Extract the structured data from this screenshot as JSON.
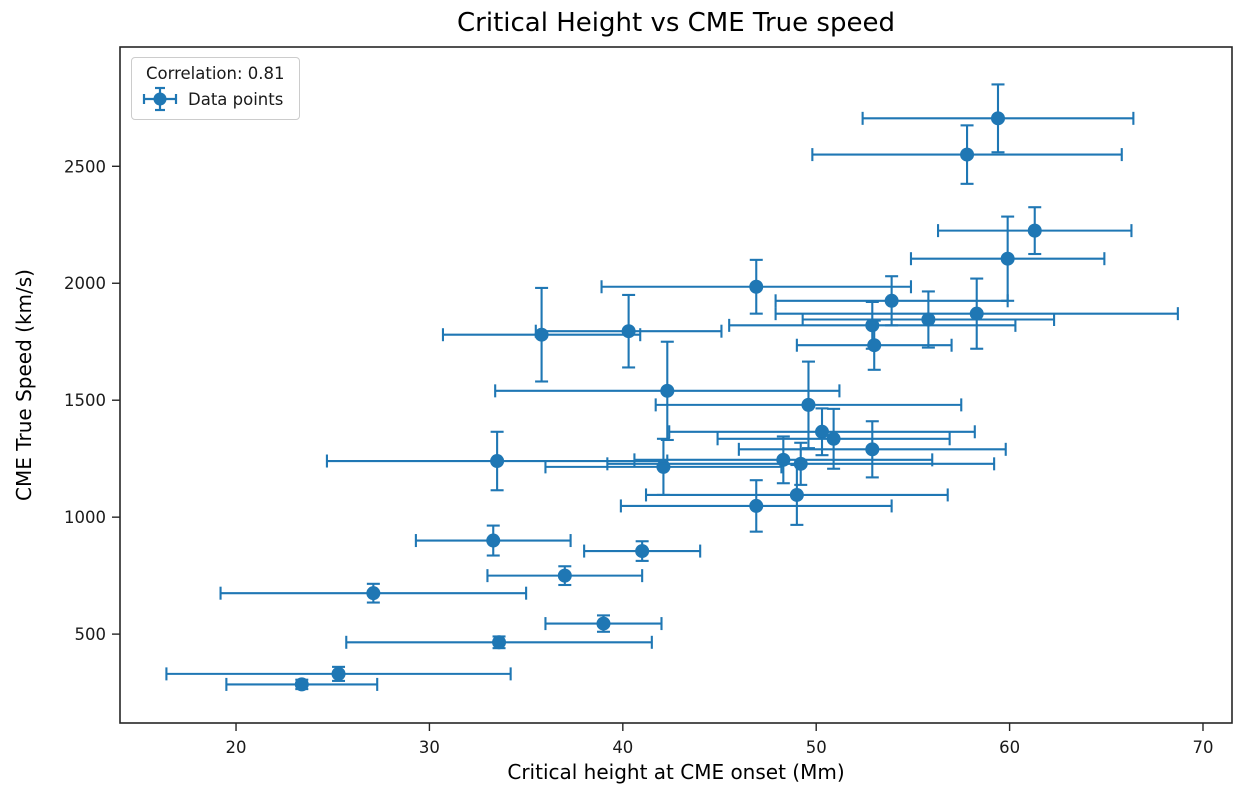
{
  "chart": {
    "title": "Critical Height vs CME True speed",
    "xlabel": "Critical height at CME onset (Mm)",
    "ylabel": "CME True Speed (km/s)",
    "legend": {
      "correlation_label": "Correlation: 0.81",
      "series_label": "Data points"
    }
  },
  "chart_data": {
    "type": "scatter",
    "title": "Critical Height vs CME True speed",
    "xlabel": "Critical height at CME onset (Mm)",
    "ylabel": "CME True Speed (km/s)",
    "legend_entries": [
      "Correlation: 0.81",
      "Data points"
    ],
    "legend_position": "upper-left",
    "correlation": 0.81,
    "grid": false,
    "marker": "o",
    "marker_color": "#1f77b4",
    "spine_color": "#262626",
    "xlim": [
      14,
      71.5
    ],
    "ylim": [
      120,
      3010
    ],
    "xticks": [
      20,
      30,
      40,
      50,
      60,
      70
    ],
    "yticks": [
      500,
      1000,
      1500,
      2000,
      2500
    ],
    "point_columns": [
      "x",
      "y",
      "x_err",
      "y_err"
    ],
    "points": [
      [
        59.4,
        2705,
        7.0,
        145
      ],
      [
        57.8,
        2550,
        8.0,
        125
      ],
      [
        61.3,
        2225,
        5.0,
        100
      ],
      [
        59.9,
        2105,
        5.0,
        180
      ],
      [
        46.9,
        1985,
        8.0,
        115
      ],
      [
        53.9,
        1925,
        6.0,
        105
      ],
      [
        58.3,
        1870,
        10.4,
        150
      ],
      [
        55.8,
        1845,
        6.5,
        120
      ],
      [
        52.9,
        1820,
        7.4,
        100
      ],
      [
        53.0,
        1735,
        4.0,
        105
      ],
      [
        40.3,
        1795,
        4.8,
        155
      ],
      [
        35.8,
        1780,
        5.1,
        200
      ],
      [
        42.3,
        1540,
        8.9,
        210
      ],
      [
        49.6,
        1480,
        7.9,
        185
      ],
      [
        50.3,
        1365,
        7.9,
        100
      ],
      [
        50.9,
        1335,
        6.0,
        128
      ],
      [
        52.9,
        1290,
        6.9,
        120
      ],
      [
        33.5,
        1240,
        8.8,
        125
      ],
      [
        42.1,
        1215,
        6.1,
        120
      ],
      [
        48.3,
        1245,
        7.7,
        100
      ],
      [
        49.2,
        1228,
        10.0,
        90
      ],
      [
        49.0,
        1095,
        7.8,
        128
      ],
      [
        46.9,
        1048,
        7.0,
        110
      ],
      [
        33.3,
        900,
        4.0,
        64
      ],
      [
        41.0,
        855,
        3.0,
        42
      ],
      [
        37.0,
        750,
        4.0,
        40
      ],
      [
        27.1,
        675,
        7.9,
        40
      ],
      [
        39.0,
        545,
        3.0,
        35
      ],
      [
        33.6,
        465,
        7.9,
        25
      ],
      [
        25.3,
        330,
        8.9,
        30
      ],
      [
        23.4,
        285,
        3.9,
        20
      ]
    ]
  }
}
